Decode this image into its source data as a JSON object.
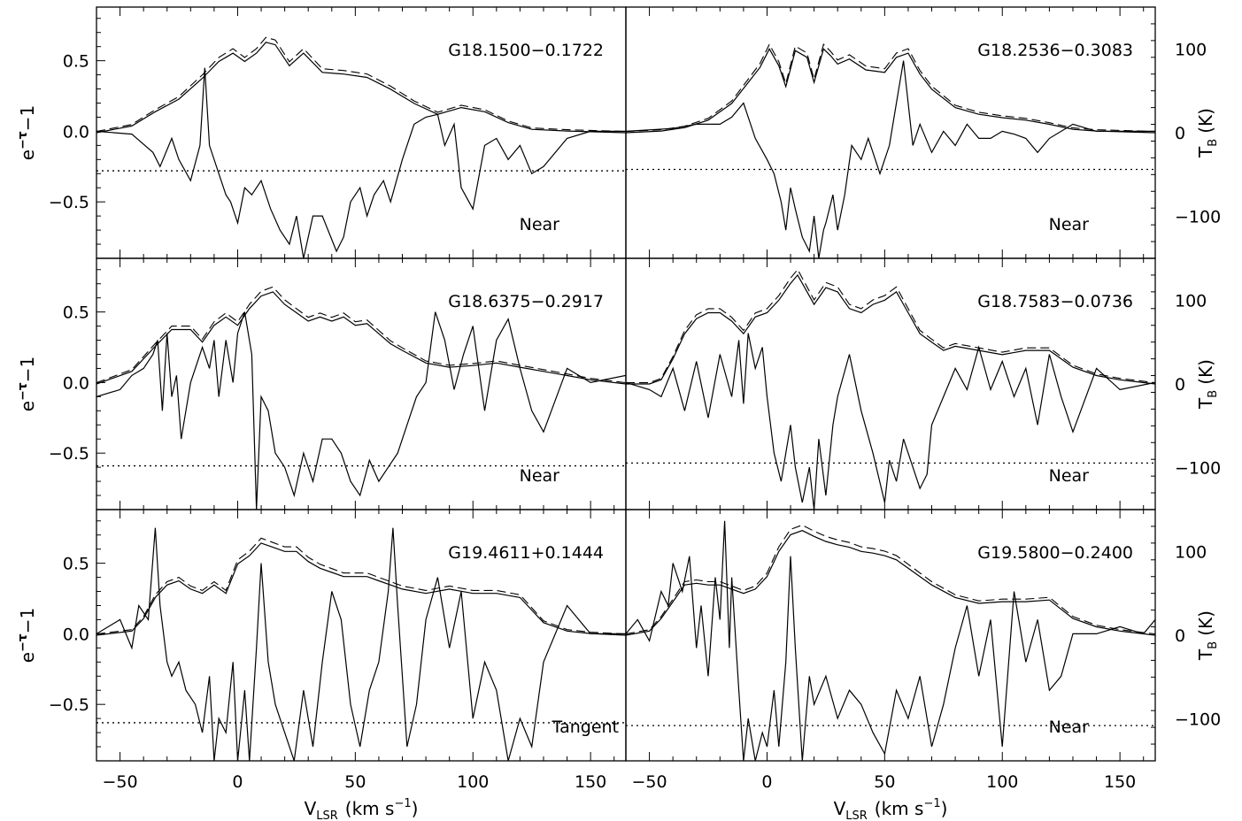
{
  "chart_data": {
    "type": "line",
    "layout_grid": "3 rows x 2 columns",
    "xlim": [
      -60,
      165
    ],
    "ylim_left": [
      -0.9,
      0.88
    ],
    "ylim_right": [
      -150,
      150
    ],
    "x_ticks": [
      -50,
      0,
      50,
      100,
      150
    ],
    "x_tick_labels": [
      "−50",
      "0",
      "50",
      "100",
      "150"
    ],
    "y_ticks_left": [
      -0.5,
      0.0,
      0.5
    ],
    "y_tick_labels_left": [
      "−0.5",
      "0.0",
      "0.5"
    ],
    "y_ticks_right": [
      -100,
      0,
      100
    ],
    "y_tick_labels_right": [
      "−100",
      "0",
      "100"
    ],
    "xlabel": "V",
    "xlabel_sub": "LSR",
    "xlabel_unit": "(km s",
    "xlabel_exp": "−1",
    "xlabel_close": ")",
    "ylabel_left": "e",
    "ylabel_left_exp": "−τ",
    "ylabel_left_tail": "−1",
    "ylabel_right": "T",
    "ylabel_right_sub": "B",
    "ylabel_right_unit": "(K)",
    "series_styles": [
      "solid absorption spectrum",
      "solid emission spectrum",
      "dashed emission spectrum",
      "dotted noise envelope"
    ],
    "panels": [
      {
        "title": "G18.1500−0.1722",
        "note": "Near",
        "emission_x": [
          -60,
          -45,
          -35,
          -25,
          -15,
          -8,
          -2,
          3,
          8,
          12,
          16,
          22,
          28,
          36,
          45,
          55,
          65,
          75,
          85,
          95,
          105,
          115,
          125,
          140,
          165
        ],
        "emission_y": [
          0,
          8,
          25,
          40,
          65,
          85,
          95,
          85,
          95,
          108,
          105,
          80,
          95,
          72,
          70,
          66,
          52,
          35,
          22,
          30,
          25,
          12,
          4,
          2,
          0
        ],
        "absorption_x": [
          -60,
          -45,
          -36,
          -33,
          -28,
          -25,
          -20,
          -16,
          -14,
          -12,
          -8,
          -5,
          -3,
          0,
          3,
          6,
          10,
          14,
          18,
          22,
          25,
          28,
          32,
          36,
          42,
          45,
          48,
          52,
          55,
          58,
          62,
          65,
          70,
          75,
          80,
          85,
          88,
          92,
          95,
          100,
          105,
          110,
          115,
          120,
          125,
          130,
          140,
          150,
          165
        ],
        "absorption_y": [
          0.0,
          -0.02,
          -0.15,
          -0.25,
          -0.05,
          -0.2,
          -0.35,
          -0.1,
          0.45,
          -0.1,
          -0.3,
          -0.45,
          -0.5,
          -0.65,
          -0.4,
          -0.45,
          -0.35,
          -0.55,
          -0.7,
          -0.8,
          -0.6,
          -0.9,
          -0.6,
          -0.6,
          -0.85,
          -0.75,
          -0.5,
          -0.4,
          -0.6,
          -0.45,
          -0.35,
          -0.5,
          -0.2,
          0.05,
          0.1,
          0.12,
          -0.1,
          0.05,
          -0.4,
          -0.55,
          -0.1,
          -0.05,
          -0.2,
          -0.1,
          -0.3,
          -0.25,
          -0.05,
          0.0,
          0.0
        ],
        "noise_level": -0.28
      },
      {
        "title": "G18.2536−0.3083",
        "note": "Near",
        "emission_x": [
          -60,
          -45,
          -35,
          -25,
          -15,
          -8,
          -3,
          1,
          5,
          8,
          12,
          17,
          20,
          24,
          27,
          30,
          35,
          42,
          50,
          55,
          60,
          65,
          70,
          80,
          90,
          100,
          110,
          120,
          130,
          140,
          165
        ],
        "emission_y": [
          0,
          2,
          6,
          15,
          35,
          60,
          78,
          100,
          80,
          55,
          98,
          90,
          60,
          100,
          92,
          82,
          88,
          75,
          72,
          90,
          95,
          70,
          52,
          30,
          22,
          18,
          15,
          10,
          4,
          2,
          0
        ],
        "absorption_x": [
          -60,
          -40,
          -30,
          -20,
          -15,
          -10,
          -5,
          0,
          3,
          6,
          8,
          10,
          12,
          15,
          18,
          20,
          22,
          24,
          25,
          28,
          30,
          33,
          36,
          40,
          43,
          45,
          48,
          52,
          55,
          58,
          62,
          65,
          70,
          75,
          80,
          85,
          90,
          95,
          100,
          105,
          110,
          115,
          120,
          130,
          140,
          150,
          165
        ],
        "absorption_y": [
          0.0,
          0.02,
          0.05,
          0.05,
          0.1,
          0.2,
          -0.05,
          -0.2,
          -0.3,
          -0.5,
          -0.7,
          -0.4,
          -0.55,
          -0.75,
          -0.85,
          -0.6,
          -0.9,
          -0.7,
          -0.65,
          -0.45,
          -0.7,
          -0.45,
          -0.1,
          -0.2,
          -0.05,
          -0.15,
          -0.3,
          -0.1,
          0.2,
          0.5,
          -0.1,
          0.05,
          -0.15,
          0.0,
          -0.1,
          0.05,
          -0.05,
          -0.05,
          0.0,
          -0.02,
          -0.05,
          -0.15,
          -0.05,
          0.05,
          0.0,
          0.0,
          0.0
        ],
        "noise_level": -0.27
      },
      {
        "title": "G18.6375−0.2917",
        "note": "Near",
        "emission_x": [
          -60,
          -45,
          -35,
          -28,
          -20,
          -15,
          -10,
          -5,
          0,
          5,
          10,
          15,
          20,
          25,
          30,
          35,
          40,
          45,
          50,
          55,
          60,
          65,
          70,
          80,
          90,
          100,
          110,
          120,
          130,
          140,
          150,
          165
        ],
        "emission_y": [
          0,
          15,
          45,
          65,
          65,
          50,
          70,
          80,
          70,
          90,
          105,
          110,
          95,
          85,
          75,
          80,
          75,
          80,
          70,
          72,
          60,
          48,
          40,
          25,
          20,
          22,
          25,
          20,
          15,
          10,
          5,
          0
        ],
        "absorption_x": [
          -60,
          -50,
          -45,
          -40,
          -36,
          -34,
          -32,
          -30,
          -28,
          -26,
          -24,
          -20,
          -18,
          -15,
          -12,
          -10,
          -8,
          -5,
          -2,
          0,
          3,
          6,
          8,
          10,
          13,
          16,
          20,
          24,
          28,
          32,
          36,
          40,
          44,
          48,
          52,
          56,
          60,
          64,
          68,
          72,
          76,
          80,
          84,
          88,
          92,
          96,
          100,
          105,
          110,
          115,
          120,
          125,
          130,
          140,
          150,
          165
        ],
        "absorption_y": [
          -0.1,
          -0.05,
          0.05,
          0.1,
          0.2,
          0.3,
          -0.2,
          0.35,
          -0.1,
          0.05,
          -0.4,
          0.0,
          0.1,
          0.25,
          0.1,
          0.3,
          -0.1,
          0.3,
          0.0,
          0.35,
          0.5,
          0.2,
          -0.9,
          -0.1,
          -0.2,
          -0.5,
          -0.6,
          -0.8,
          -0.5,
          -0.7,
          -0.4,
          -0.4,
          -0.5,
          -0.7,
          -0.8,
          -0.55,
          -0.7,
          -0.6,
          -0.5,
          -0.3,
          -0.1,
          0.0,
          0.5,
          0.3,
          -0.05,
          0.2,
          0.4,
          -0.2,
          0.3,
          0.45,
          0.1,
          -0.2,
          -0.35,
          0.1,
          0.0,
          0.05
        ],
        "noise_level": -0.59
      },
      {
        "title": "G18.7583−0.0736",
        "note": "Near",
        "emission_x": [
          -60,
          -50,
          -45,
          -40,
          -35,
          -30,
          -25,
          -20,
          -15,
          -10,
          -5,
          0,
          5,
          10,
          13,
          16,
          20,
          25,
          30,
          35,
          40,
          45,
          50,
          55,
          60,
          65,
          70,
          75,
          80,
          90,
          100,
          110,
          120,
          130,
          140,
          150,
          165
        ],
        "emission_y": [
          0,
          0,
          5,
          30,
          60,
          78,
          85,
          85,
          75,
          60,
          80,
          85,
          100,
          120,
          130,
          115,
          95,
          115,
          110,
          90,
          85,
          95,
          100,
          110,
          85,
          60,
          50,
          40,
          45,
          40,
          35,
          40,
          40,
          20,
          10,
          5,
          0
        ],
        "absorption_x": [
          -60,
          -50,
          -45,
          -40,
          -35,
          -30,
          -25,
          -20,
          -15,
          -12,
          -10,
          -8,
          -5,
          -2,
          0,
          3,
          6,
          8,
          10,
          12,
          15,
          18,
          20,
          22,
          25,
          28,
          30,
          35,
          40,
          45,
          50,
          52,
          55,
          58,
          62,
          65,
          68,
          70,
          75,
          80,
          85,
          90,
          95,
          100,
          105,
          110,
          115,
          120,
          125,
          130,
          140,
          150,
          165
        ],
        "absorption_y": [
          0.0,
          -0.05,
          -0.1,
          0.1,
          -0.2,
          0.15,
          -0.25,
          0.2,
          -0.1,
          0.3,
          -0.15,
          0.35,
          0.1,
          0.25,
          -0.1,
          -0.5,
          -0.7,
          -0.5,
          -0.3,
          -0.6,
          -0.85,
          -0.6,
          -0.9,
          -0.4,
          -0.8,
          -0.3,
          -0.1,
          0.2,
          -0.2,
          -0.5,
          -0.85,
          -0.55,
          -0.7,
          -0.4,
          -0.6,
          -0.75,
          -0.65,
          -0.3,
          -0.1,
          0.1,
          -0.05,
          0.25,
          -0.05,
          0.15,
          -0.1,
          0.1,
          -0.3,
          0.2,
          -0.1,
          -0.35,
          0.1,
          -0.05,
          0.0
        ],
        "noise_level": -0.57
      },
      {
        "title": "G19.4611+0.1444",
        "note": "Tangent",
        "emission_x": [
          -60,
          -45,
          -40,
          -35,
          -30,
          -25,
          -20,
          -15,
          -10,
          -5,
          0,
          5,
          10,
          15,
          20,
          25,
          30,
          35,
          40,
          45,
          50,
          55,
          60,
          65,
          70,
          80,
          90,
          100,
          110,
          120,
          125,
          130,
          140,
          150,
          165
        ],
        "emission_y": [
          0,
          5,
          20,
          45,
          60,
          65,
          55,
          50,
          60,
          50,
          85,
          95,
          110,
          105,
          100,
          100,
          88,
          80,
          75,
          70,
          70,
          70,
          65,
          60,
          55,
          50,
          55,
          50,
          50,
          45,
          30,
          15,
          5,
          2,
          0
        ],
        "absorption_x": [
          -60,
          -50,
          -45,
          -42,
          -38,
          -35,
          -33,
          -30,
          -28,
          -25,
          -22,
          -18,
          -15,
          -12,
          -10,
          -8,
          -5,
          -2,
          0,
          3,
          5,
          8,
          10,
          13,
          16,
          20,
          24,
          28,
          32,
          36,
          40,
          44,
          48,
          52,
          56,
          60,
          64,
          66,
          68,
          72,
          76,
          80,
          85,
          90,
          95,
          100,
          105,
          110,
          115,
          120,
          125,
          130,
          140,
          150,
          165
        ],
        "absorption_y": [
          0.0,
          0.1,
          -0.1,
          0.2,
          0.1,
          0.75,
          0.2,
          -0.2,
          -0.3,
          -0.2,
          -0.4,
          -0.5,
          -0.7,
          -0.3,
          -0.9,
          -0.6,
          -0.7,
          -0.2,
          -0.9,
          -0.4,
          -0.9,
          -0.1,
          0.5,
          -0.2,
          -0.5,
          -0.7,
          -0.9,
          -0.4,
          -0.8,
          -0.2,
          0.3,
          0.1,
          -0.5,
          -0.8,
          -0.4,
          -0.2,
          0.3,
          0.75,
          0.2,
          -0.8,
          -0.5,
          0.1,
          0.4,
          -0.1,
          0.3,
          -0.6,
          -0.2,
          -0.4,
          -0.9,
          -0.6,
          -0.8,
          -0.2,
          0.2,
          0.0,
          0.0
        ],
        "noise_level": -0.63
      },
      {
        "title": "G19.5800−0.2400",
        "note": "Near",
        "emission_x": [
          -60,
          -50,
          -45,
          -40,
          -35,
          -30,
          -25,
          -20,
          -15,
          -10,
          -5,
          0,
          5,
          10,
          15,
          20,
          25,
          30,
          35,
          40,
          45,
          50,
          55,
          60,
          65,
          70,
          80,
          90,
          100,
          110,
          120,
          130,
          140,
          150,
          165
        ],
        "emission_y": [
          0,
          5,
          20,
          40,
          60,
          62,
          60,
          60,
          55,
          50,
          55,
          70,
          100,
          120,
          125,
          118,
          112,
          108,
          105,
          100,
          98,
          95,
          90,
          80,
          70,
          60,
          45,
          38,
          40,
          40,
          42,
          20,
          10,
          5,
          0
        ],
        "absorption_x": [
          -60,
          -55,
          -50,
          -45,
          -42,
          -40,
          -36,
          -33,
          -30,
          -28,
          -25,
          -22,
          -20,
          -18,
          -16,
          -15,
          -12,
          -10,
          -8,
          -5,
          -2,
          0,
          3,
          5,
          8,
          10,
          12,
          15,
          18,
          20,
          25,
          30,
          35,
          40,
          45,
          50,
          55,
          60,
          65,
          70,
          75,
          80,
          85,
          90,
          95,
          100,
          105,
          110,
          115,
          120,
          125,
          130,
          140,
          150,
          160,
          165
        ],
        "absorption_y": [
          0.0,
          0.1,
          -0.05,
          0.3,
          0.2,
          0.5,
          0.3,
          0.55,
          -0.1,
          0.2,
          -0.3,
          0.4,
          0.1,
          0.8,
          -0.1,
          0.4,
          -0.4,
          -0.9,
          -0.6,
          -0.9,
          -0.7,
          -0.8,
          -0.4,
          -0.8,
          -0.2,
          0.55,
          -0.1,
          -0.9,
          -0.3,
          -0.5,
          -0.3,
          -0.6,
          -0.4,
          -0.5,
          -0.7,
          -0.85,
          -0.4,
          -0.6,
          -0.3,
          -0.8,
          -0.5,
          -0.1,
          0.2,
          -0.3,
          0.1,
          -0.8,
          0.3,
          -0.2,
          0.1,
          -0.4,
          -0.3,
          0.0,
          0.0,
          0.05,
          0.0,
          0.1
        ],
        "noise_level": -0.65
      }
    ]
  }
}
